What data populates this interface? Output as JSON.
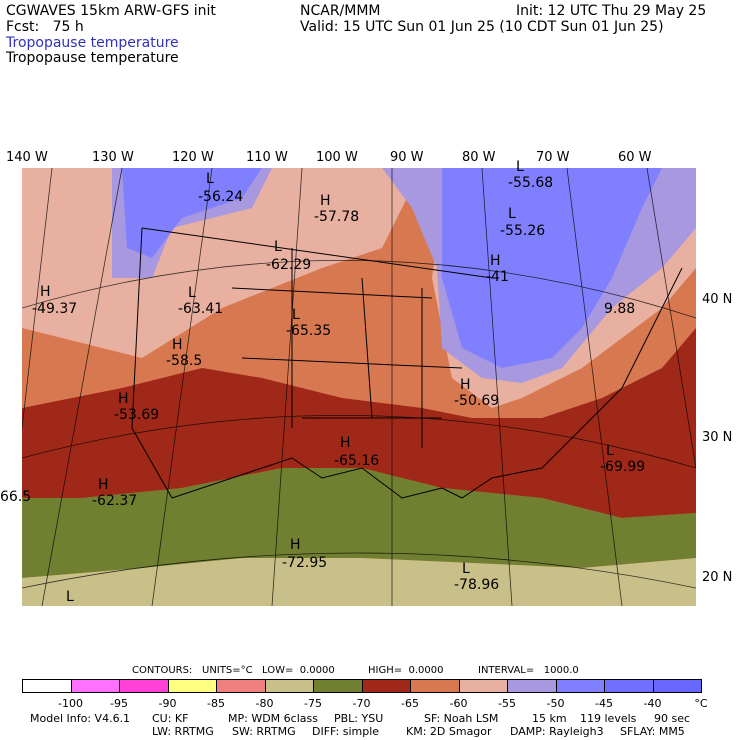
{
  "header": {
    "line1_left": "CGWAVES 15km ARW-GFS init",
    "line1_mid": "NCAR/MMM",
    "line1_right": "Init: 12 UTC Thu 29 May 25",
    "fcst": "Fcst:   75 h",
    "valid": "Valid: 15 UTC Sun 01 Jun 25 (10 CDT Sun 01 Jun 25)",
    "field1": "Tropopause temperature",
    "field2": "Tropopause temperature"
  },
  "axes": {
    "lon_labels": [
      "140 W",
      "130 W",
      "120 W",
      "110 W",
      "100 W",
      "90 W",
      "80 W",
      "70 W",
      "60 W"
    ],
    "lat_labels": [
      "40 N",
      "30 N",
      "20 N"
    ]
  },
  "map": {
    "annotations": [
      {
        "kind": "L",
        "value": "-56.24"
      },
      {
        "kind": "H",
        "value": "-57.78"
      },
      {
        "kind": "L",
        "value": "-55.68"
      },
      {
        "kind": "L",
        "value": "-55.26"
      },
      {
        "kind": "L",
        "value": "-62.29"
      },
      {
        "kind": "H",
        "value": "-41"
      },
      {
        "kind": "H",
        "value": "-49.37"
      },
      {
        "kind": "L",
        "value": "-63.41"
      },
      {
        "kind": "L",
        "value": "-65.35"
      },
      {
        "kind": "",
        "value": "9.88"
      },
      {
        "kind": "H",
        "value": "-58.5"
      },
      {
        "kind": "H",
        "value": "-50.69"
      },
      {
        "kind": "H",
        "value": "-53.69"
      },
      {
        "kind": "H",
        "value": "-65.16"
      },
      {
        "kind": "L",
        "value": "-69.99"
      },
      {
        "kind": "",
        "value": "66.5"
      },
      {
        "kind": "H",
        "value": "-62.37"
      },
      {
        "kind": "H",
        "value": "-72.95"
      },
      {
        "kind": "L",
        "value": "-78.96"
      },
      {
        "kind": "L",
        "value": ""
      }
    ]
  },
  "contours": {
    "label": "CONTOURS:",
    "units": "UNITS=°C",
    "low": "LOW=  0.0000",
    "high": "HIGH=  0.0000",
    "interval": "INTERVAL=   1000.0"
  },
  "colorbar": {
    "colors": [
      "#ffffff",
      "#ff70ff",
      "#ff40d8",
      "#ffff80",
      "#f08080",
      "#c8c088",
      "#708030",
      "#a02818",
      "#d87850",
      "#e8b0a0",
      "#a898e0",
      "#8080ff",
      "#7070ff",
      "#6868ff"
    ],
    "labels": [
      "-100",
      "-95",
      "-90",
      "-85",
      "-80",
      "-75",
      "-70",
      "-65",
      "-60",
      "-55",
      "-50",
      "-45",
      "-40",
      "°C"
    ]
  },
  "footer": {
    "model": "Model Info: V4.6.1",
    "cu": "CU: KF",
    "mp": "MP: WDM 6class",
    "pbl": "PBL: YSU",
    "sf": "SF: Noah LSM",
    "res": "15 km",
    "levels": "119 levels",
    "dt": "90 sec",
    "lw": "LW: RRTMG",
    "sw": "SW: RRTMG",
    "diff": "DIFF: simple",
    "km": "KM: 2D Smagor",
    "damp": "DAMP: Rayleigh3",
    "sflay": "SFLAY: MM5"
  }
}
